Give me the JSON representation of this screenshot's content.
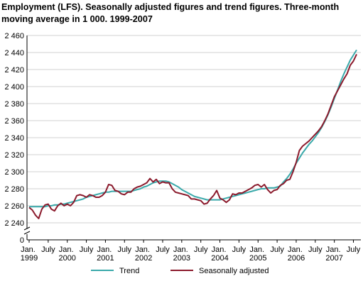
{
  "chart_data": {
    "type": "line",
    "title": "Employment (LFS). Seasonally adjusted figures and trend figures. Three-month moving average in 1 000. 1999-2007",
    "categories": [
      "Jan. 1999",
      null,
      null,
      null,
      null,
      null,
      "July",
      null,
      null,
      null,
      null,
      null,
      "Jan. 2000",
      null,
      null,
      null,
      null,
      null,
      "July",
      null,
      null,
      null,
      null,
      null,
      "Jan. 2001",
      null,
      null,
      null,
      null,
      null,
      "July",
      null,
      null,
      null,
      null,
      null,
      "Jan. 2002",
      null,
      null,
      null,
      null,
      null,
      "July",
      null,
      null,
      null,
      null,
      null,
      "Jan. 2003",
      null,
      null,
      null,
      null,
      null,
      "July",
      null,
      null,
      null,
      null,
      null,
      "Jan. 2004",
      null,
      null,
      null,
      null,
      null,
      "July",
      null,
      null,
      null,
      null,
      null,
      "Jan. 2005",
      null,
      null,
      null,
      null,
      null,
      "July",
      null,
      null,
      null,
      null,
      null,
      "Jan. 2006",
      null,
      null,
      null,
      null,
      null,
      "July",
      null,
      null,
      null,
      null,
      null,
      "Jan. 2007",
      null,
      null,
      null,
      null,
      null,
      "July",
      null
    ],
    "series": [
      {
        "name": "Trend",
        "color": "#3aa9aa",
        "values": [
          2259,
          2259,
          2259,
          2259,
          2259,
          2259,
          2260,
          2260,
          2261,
          2261,
          2262,
          2262,
          2263,
          2264,
          2265,
          2266,
          2267,
          2268,
          2270,
          2271,
          2272,
          2273,
          2274,
          2275,
          2276,
          2276,
          2277,
          2277,
          2277,
          2277,
          2277,
          2277,
          2277,
          2278,
          2279,
          2280,
          2282,
          2283,
          2285,
          2287,
          2288,
          2289,
          2289,
          2289,
          2288,
          2286,
          2284,
          2282,
          2279,
          2277,
          2275,
          2273,
          2271,
          2270,
          2269,
          2268,
          2267,
          2267,
          2267,
          2267,
          2267,
          2268,
          2269,
          2270,
          2271,
          2272,
          2273,
          2274,
          2275,
          2276,
          2277,
          2278,
          2279,
          2280,
          2280,
          2281,
          2281,
          2281,
          2282,
          2283,
          2288,
          2292,
          2297,
          2303,
          2310,
          2316,
          2322,
          2327,
          2332,
          2336,
          2341,
          2346,
          2352,
          2359,
          2367,
          2376,
          2386,
          2396,
          2406,
          2415,
          2423,
          2431,
          2437,
          2443
        ]
      },
      {
        "name": "Seasonally adjusted",
        "color": "#8b1a2c",
        "values": [
          2258,
          2255,
          2249,
          2245,
          2256,
          2261,
          2262,
          2256,
          2254,
          2260,
          2263,
          2260,
          2262,
          2260,
          2264,
          2272,
          2273,
          2272,
          2270,
          2273,
          2272,
          2270,
          2270,
          2272,
          2276,
          2285,
          2284,
          2278,
          2277,
          2274,
          2273,
          2276,
          2276,
          2280,
          2282,
          2283,
          2285,
          2287,
          2292,
          2288,
          2291,
          2286,
          2288,
          2287,
          2287,
          2280,
          2276,
          2275,
          2274,
          2273,
          2272,
          2268,
          2268,
          2267,
          2266,
          2262,
          2263,
          2268,
          2272,
          2278,
          2269,
          2267,
          2264,
          2267,
          2274,
          2273,
          2275,
          2275,
          2277,
          2279,
          2281,
          2284,
          2285,
          2282,
          2285,
          2279,
          2275,
          2278,
          2279,
          2284,
          2286,
          2290,
          2291,
          2300,
          2311,
          2325,
          2330,
          2333,
          2336,
          2340,
          2344,
          2348,
          2353,
          2360,
          2368,
          2378,
          2388,
          2395,
          2402,
          2409,
          2415,
          2425,
          2430,
          2438
        ]
      }
    ],
    "ylim": [
      0,
      2460
    ],
    "y_axis_break": [
      0,
      2240
    ],
    "yticks": [
      0,
      {
        "value": 2240,
        "label": "2 240"
      },
      {
        "value": 2260,
        "label": "2 260"
      },
      {
        "value": 2280,
        "label": "2 280"
      },
      {
        "value": 2300,
        "label": "2 300"
      },
      {
        "value": 2320,
        "label": "2 320"
      },
      {
        "value": 2340,
        "label": "2 340"
      },
      {
        "value": 2360,
        "label": "2 360"
      },
      {
        "value": 2380,
        "label": "2 380"
      },
      {
        "value": 2400,
        "label": "2 400"
      },
      {
        "value": 2420,
        "label": "2 420"
      },
      {
        "value": 2440,
        "label": "2 440"
      },
      {
        "value": 2460,
        "label": "2 460"
      }
    ],
    "grid": true,
    "legend": "bottom"
  }
}
